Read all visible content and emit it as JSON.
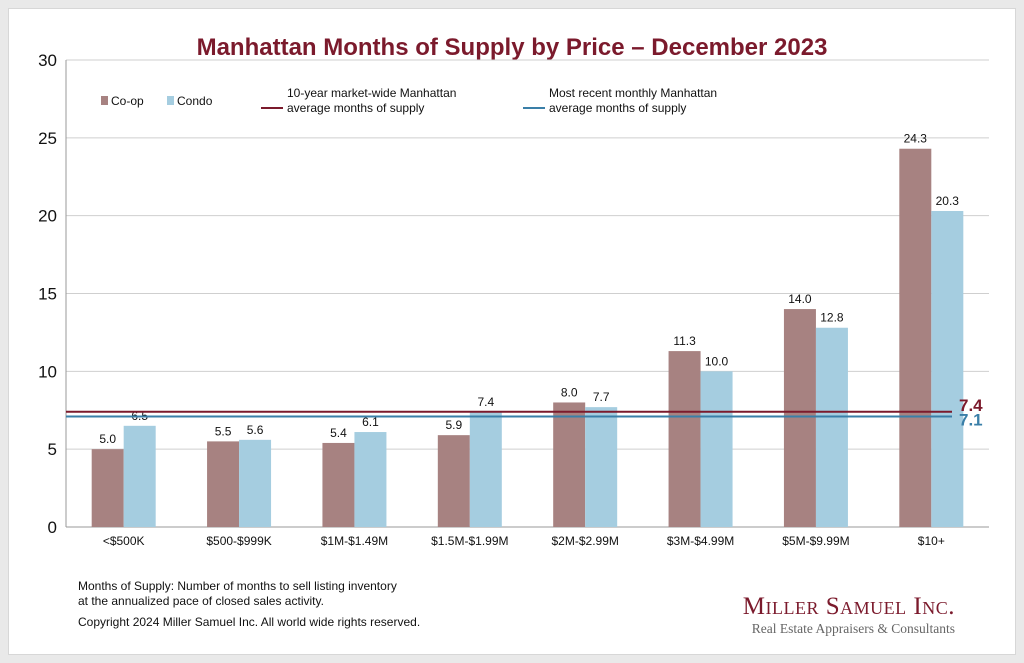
{
  "chart_data": {
    "type": "bar",
    "title": "Manhattan Months of Supply by Price – December 2023",
    "categories": [
      "<$500K",
      "$500-$999K",
      "$1M-$1.49M",
      "$1.5M-$1.99M",
      "$2M-$2.99M",
      "$3M-$4.99M",
      "$5M-$9.99M",
      "$10+"
    ],
    "series": [
      {
        "name": "Co-op",
        "color": "#a78281",
        "values": [
          5.0,
          5.5,
          5.4,
          5.9,
          8.0,
          11.3,
          14.0,
          24.3
        ]
      },
      {
        "name": "Condo",
        "color": "#a5cde0",
        "values": [
          6.5,
          5.6,
          6.1,
          7.4,
          7.7,
          10.0,
          12.8,
          20.3
        ]
      }
    ],
    "reference_lines": [
      {
        "name": "10-year market-wide Manhattan average months of supply",
        "label_lines": [
          "10-year market-wide Manhattan",
          "average months of supply"
        ],
        "value": 7.4,
        "value_label": "7.4",
        "color": "#7b1a2c"
      },
      {
        "name": "Most recent monthly Manhattan average months of supply",
        "label_lines": [
          "Most recent monthly Manhattan",
          "average months of supply"
        ],
        "value": 7.1,
        "value_label": "7.1",
        "color": "#3a7fa8"
      }
    ],
    "ylim": [
      0,
      30
    ],
    "yticks": [
      0,
      5,
      10,
      15,
      20,
      25,
      30
    ],
    "grid": true,
    "legend_position": "top-left",
    "xlabel": "",
    "ylabel": ""
  },
  "footnote": {
    "line1": "Months of Supply: Number of months to sell listing inventory",
    "line2": "at the annualized pace of closed sales activity.",
    "copyright": "Copyright 2024 Miller Samuel Inc.  All world wide rights reserved."
  },
  "brand": {
    "name": "Miller Samuel Inc.",
    "tagline": "Real Estate Appraisers & Consultants"
  }
}
